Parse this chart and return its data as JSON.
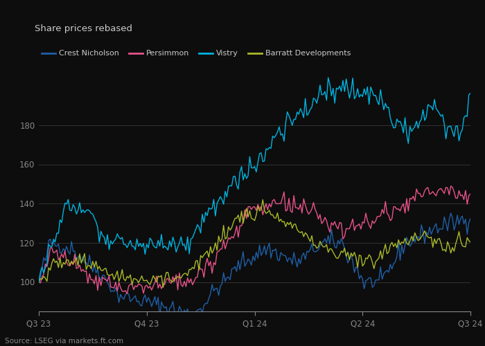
{
  "title": "Share prices rebased",
  "source": "Source: LSEG via markets.ft.com",
  "series": {
    "Crest Nicholson": {
      "color": "#1f5fa6",
      "linewidth": 1.0
    },
    "Persimmon": {
      "color": "#e8538a",
      "linewidth": 1.0
    },
    "Vistry": {
      "color": "#00b4e0",
      "linewidth": 1.0
    },
    "Barratt Developments": {
      "color": "#aab928",
      "linewidth": 1.0
    }
  },
  "ylim": [
    85,
    205
  ],
  "yticks": [
    100,
    120,
    140,
    160,
    180
  ],
  "xtick_labels": [
    "Q3 23",
    "Q4 23",
    "Q1 24",
    "Q2 24",
    "Q3 24"
  ],
  "xtick_positions": [
    0,
    66,
    132,
    198,
    264
  ],
  "background_color": "#0d0d0d",
  "plot_bg_color": "#0d0d0d",
  "grid_color": "#333333",
  "text_color": "#cccccc",
  "tick_color": "#888888",
  "num_points": 265,
  "cn_segments": [
    [
      0,
      8,
      100,
      120,
      2.5
    ],
    [
      8,
      20,
      120,
      117,
      2.0
    ],
    [
      20,
      35,
      117,
      107,
      2.5
    ],
    [
      35,
      50,
      107,
      93,
      2.0
    ],
    [
      50,
      65,
      93,
      90,
      2.0
    ],
    [
      65,
      80,
      90,
      87,
      2.5
    ],
    [
      80,
      95,
      87,
      83,
      2.5
    ],
    [
      95,
      110,
      83,
      97,
      2.5
    ],
    [
      110,
      125,
      97,
      110,
      2.0
    ],
    [
      125,
      140,
      110,
      117,
      2.5
    ],
    [
      140,
      158,
      117,
      110,
      2.5
    ],
    [
      158,
      175,
      110,
      120,
      2.0
    ],
    [
      175,
      185,
      120,
      120,
      2.5
    ],
    [
      185,
      200,
      120,
      100,
      3.0
    ],
    [
      200,
      210,
      100,
      100,
      2.0
    ],
    [
      210,
      225,
      100,
      120,
      2.5
    ],
    [
      225,
      245,
      120,
      128,
      2.5
    ],
    [
      245,
      265,
      128,
      133,
      2.5
    ]
  ],
  "pm_segments": [
    [
      0,
      10,
      100,
      116,
      2.5
    ],
    [
      10,
      20,
      116,
      110,
      2.0
    ],
    [
      20,
      35,
      110,
      100,
      2.5
    ],
    [
      35,
      55,
      100,
      97,
      2.0
    ],
    [
      55,
      75,
      97,
      99,
      2.0
    ],
    [
      75,
      95,
      99,
      101,
      2.5
    ],
    [
      95,
      115,
      101,
      120,
      2.5
    ],
    [
      115,
      132,
      120,
      138,
      2.5
    ],
    [
      132,
      148,
      138,
      140,
      2.0
    ],
    [
      148,
      162,
      140,
      138,
      2.5
    ],
    [
      162,
      175,
      138,
      130,
      2.5
    ],
    [
      175,
      188,
      130,
      127,
      2.5
    ],
    [
      188,
      200,
      127,
      130,
      2.0
    ],
    [
      200,
      215,
      130,
      135,
      2.5
    ],
    [
      215,
      230,
      135,
      143,
      2.5
    ],
    [
      230,
      250,
      143,
      147,
      2.5
    ],
    [
      250,
      265,
      147,
      144,
      2.5
    ]
  ],
  "vi_segments": [
    [
      0,
      8,
      100,
      118,
      2.0
    ],
    [
      8,
      18,
      118,
      140,
      2.5
    ],
    [
      18,
      30,
      140,
      136,
      2.5
    ],
    [
      30,
      45,
      136,
      120,
      2.5
    ],
    [
      45,
      60,
      120,
      118,
      2.5
    ],
    [
      60,
      75,
      118,
      120,
      2.5
    ],
    [
      75,
      92,
      120,
      120,
      2.5
    ],
    [
      92,
      108,
      120,
      140,
      2.5
    ],
    [
      108,
      122,
      140,
      152,
      2.5
    ],
    [
      122,
      135,
      152,
      160,
      2.5
    ],
    [
      135,
      148,
      160,
      178,
      3.0
    ],
    [
      148,
      162,
      178,
      188,
      3.0
    ],
    [
      162,
      175,
      188,
      195,
      3.0
    ],
    [
      175,
      188,
      195,
      200,
      3.0
    ],
    [
      188,
      198,
      200,
      197,
      3.0
    ],
    [
      198,
      210,
      197,
      193,
      3.0
    ],
    [
      210,
      218,
      193,
      182,
      3.0
    ],
    [
      218,
      226,
      182,
      176,
      3.0
    ],
    [
      226,
      234,
      176,
      183,
      3.0
    ],
    [
      234,
      242,
      183,
      190,
      3.0
    ],
    [
      242,
      250,
      190,
      180,
      3.0
    ],
    [
      250,
      258,
      180,
      177,
      3.0
    ],
    [
      258,
      265,
      177,
      195,
      3.0
    ]
  ],
  "bd_segments": [
    [
      0,
      10,
      100,
      110,
      2.0
    ],
    [
      10,
      22,
      110,
      112,
      2.0
    ],
    [
      22,
      35,
      112,
      108,
      2.0
    ],
    [
      35,
      50,
      108,
      103,
      2.0
    ],
    [
      50,
      68,
      103,
      100,
      2.0
    ],
    [
      68,
      85,
      100,
      102,
      2.0
    ],
    [
      85,
      105,
      102,
      115,
      2.0
    ],
    [
      105,
      122,
      115,
      133,
      2.0
    ],
    [
      122,
      138,
      133,
      136,
      2.0
    ],
    [
      138,
      152,
      136,
      130,
      2.0
    ],
    [
      152,
      165,
      130,
      122,
      2.0
    ],
    [
      165,
      178,
      122,
      116,
      2.0
    ],
    [
      178,
      192,
      116,
      113,
      2.0
    ],
    [
      192,
      205,
      113,
      110,
      2.0
    ],
    [
      205,
      220,
      110,
      120,
      2.0
    ],
    [
      220,
      235,
      120,
      122,
      2.0
    ],
    [
      235,
      250,
      122,
      118,
      2.0
    ],
    [
      250,
      265,
      118,
      121,
      2.0
    ]
  ]
}
